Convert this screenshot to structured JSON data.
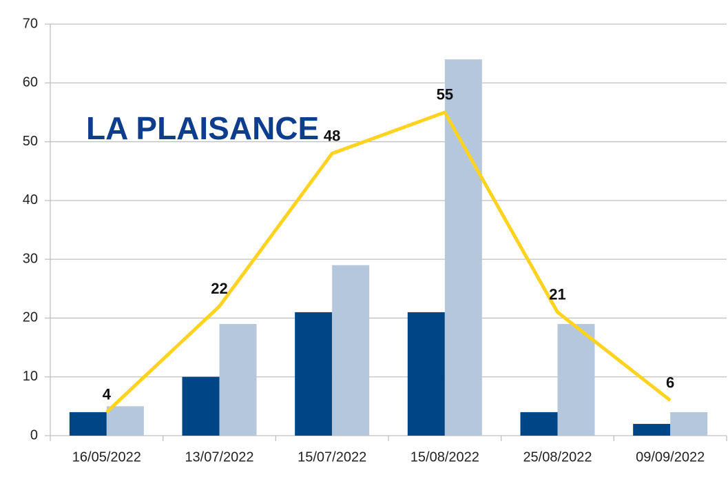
{
  "chart_data": {
    "type": "bar",
    "title": "LA PLAISANCE",
    "categories": [
      "16/05/2022",
      "13/07/2022",
      "15/07/2022",
      "15/08/2022",
      "25/08/2022",
      "09/09/2022"
    ],
    "series": [
      {
        "color": "#004586",
        "values": [
          4,
          10,
          21,
          21,
          4,
          2
        ]
      },
      {
        "color": "#b4c7dc",
        "values": [
          5,
          19,
          29,
          64,
          19,
          4
        ]
      },
      {
        "type": "line",
        "color": "#ffd320",
        "values": [
          4,
          22,
          48,
          55,
          21,
          6
        ]
      }
    ],
    "ylim": [
      0,
      70
    ],
    "yticks": [
      0,
      10,
      20,
      30,
      40,
      50,
      60,
      70
    ],
    "grid": true
  }
}
